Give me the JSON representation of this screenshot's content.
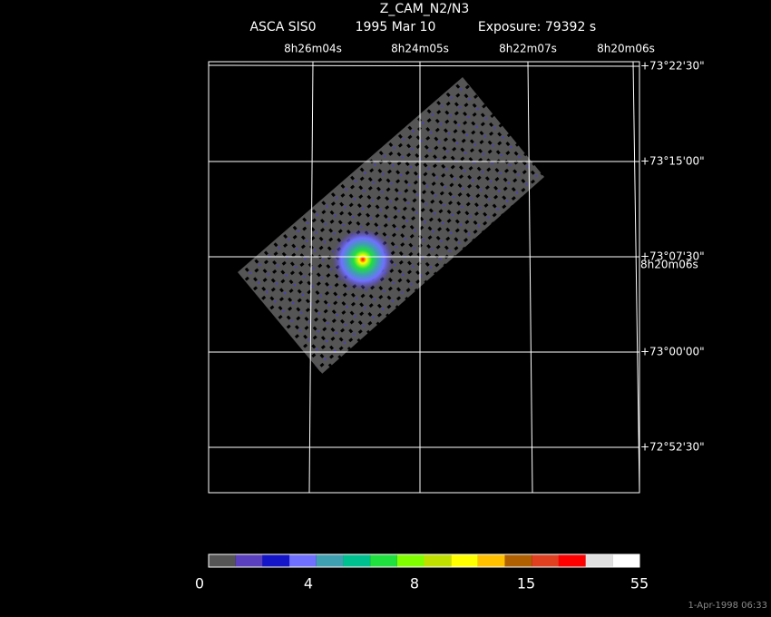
{
  "header": {
    "title": "Z_CAM_N2/N3",
    "instrument": "ASCA SIS0",
    "date": "1995 Mar 10",
    "exposure": "Exposure: 79392 s"
  },
  "ra_labels": [
    "8h26m04s",
    "8h24m05s",
    "8h22m07s",
    "8h20m06s"
  ],
  "dec_labels": [
    "+73°22'30\"",
    "+73°15'00\"",
    "+73°07'30\"",
    "+73°00'00\"",
    "+72°52'30\""
  ],
  "overlap_label": "8h20m06s",
  "colorbar": {
    "colors": [
      "#555555",
      "#5a3fbf",
      "#1414c8",
      "#7070ff",
      "#3ea0b0",
      "#00c090",
      "#20e040",
      "#80ff00",
      "#c0e000",
      "#ffff00",
      "#ffc000",
      "#b06000",
      "#e04020",
      "#ff0000",
      "#e0e0e0",
      "#ffffff"
    ],
    "labels": [
      "0",
      "4",
      "8",
      "15",
      "55"
    ]
  },
  "footer": {
    "timestamp": "1-Apr-1998 06:33"
  }
}
